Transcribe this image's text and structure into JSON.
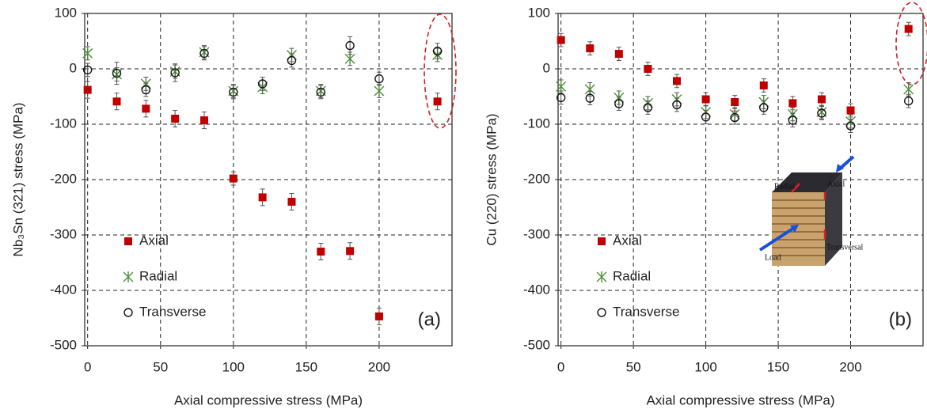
{
  "chart_data": [
    {
      "type": "scatter",
      "x_label": "Axial compressive stress (MPa)",
      "y_label": "Nb₃Sn (321) stress (MPa)",
      "panel_label": "(a)",
      "x": [
        0,
        20,
        40,
        60,
        80,
        100,
        120,
        140,
        160,
        180,
        200,
        240
      ],
      "xlim": [
        -2,
        250
      ],
      "xticks": [
        0,
        50,
        100,
        150,
        200
      ],
      "ylim": [
        -500,
        100
      ],
      "yticks": [
        100,
        0,
        -100,
        -200,
        -300,
        -400,
        -500
      ],
      "grid": true,
      "legend": "lower left",
      "series": [
        {
          "name": "Axial",
          "color": "#c00000",
          "marker": "square",
          "values": [
            -38,
            -59,
            -72,
            -90,
            -93,
            -198,
            -232,
            -240,
            -330,
            -329,
            -447,
            -59
          ],
          "errors": [
            15,
            15,
            15,
            15,
            15,
            12,
            15,
            15,
            15,
            15,
            15,
            15
          ]
        },
        {
          "name": "Radial",
          "color": "#4e8f36",
          "marker": "star",
          "values": [
            28,
            -10,
            -27,
            -5,
            30,
            -40,
            -33,
            25,
            -40,
            18,
            -40,
            25
          ],
          "errors": [
            12,
            12,
            12,
            12,
            12,
            12,
            12,
            12,
            12,
            12,
            12,
            12
          ]
        },
        {
          "name": "Transverse",
          "color": "#111111",
          "marker": "circle",
          "values": [
            -2,
            -8,
            -38,
            -7,
            28,
            -42,
            -27,
            15,
            -42,
            42,
            -18,
            32
          ],
          "errors": [
            12,
            20,
            12,
            16,
            12,
            12,
            12,
            12,
            12,
            16,
            12,
            14
          ]
        }
      ]
    },
    {
      "type": "scatter",
      "x_label": "Axial compressive stress (MPa)",
      "y_label": "Cu (220) stress (MPa)",
      "panel_label": "(b)",
      "x": [
        0,
        20,
        40,
        60,
        80,
        100,
        120,
        140,
        160,
        180,
        200,
        240
      ],
      "xlim": [
        -2,
        250
      ],
      "xticks": [
        0,
        50,
        100,
        150,
        200
      ],
      "ylim": [
        -500,
        100
      ],
      "yticks": [
        100,
        0,
        -100,
        -200,
        -300,
        -400,
        -500
      ],
      "grid": true,
      "legend": "lower left",
      "inset_labels": [
        "Radial",
        "Axial",
        "Transversal",
        "Load"
      ],
      "series": [
        {
          "name": "Axial",
          "color": "#c00000",
          "marker": "square",
          "values": [
            52,
            37,
            27,
            0,
            -22,
            -55,
            -60,
            -30,
            -62,
            -55,
            -75,
            72
          ],
          "errors": [
            12,
            12,
            12,
            12,
            12,
            12,
            12,
            12,
            12,
            12,
            12,
            12
          ]
        },
        {
          "name": "Radial",
          "color": "#4e8f36",
          "marker": "star",
          "values": [
            -32,
            -37,
            -52,
            -62,
            -55,
            -78,
            -82,
            -60,
            -82,
            -78,
            -95,
            -37
          ],
          "errors": [
            12,
            12,
            12,
            12,
            12,
            12,
            12,
            12,
            12,
            12,
            12,
            12
          ]
        },
        {
          "name": "Transverse",
          "color": "#111111",
          "marker": "circle",
          "values": [
            -52,
            -53,
            -63,
            -70,
            -65,
            -87,
            -88,
            -70,
            -93,
            -80,
            -103,
            -58
          ],
          "errors": [
            12,
            12,
            12,
            12,
            12,
            12,
            12,
            12,
            12,
            12,
            12,
            12
          ]
        }
      ]
    }
  ]
}
